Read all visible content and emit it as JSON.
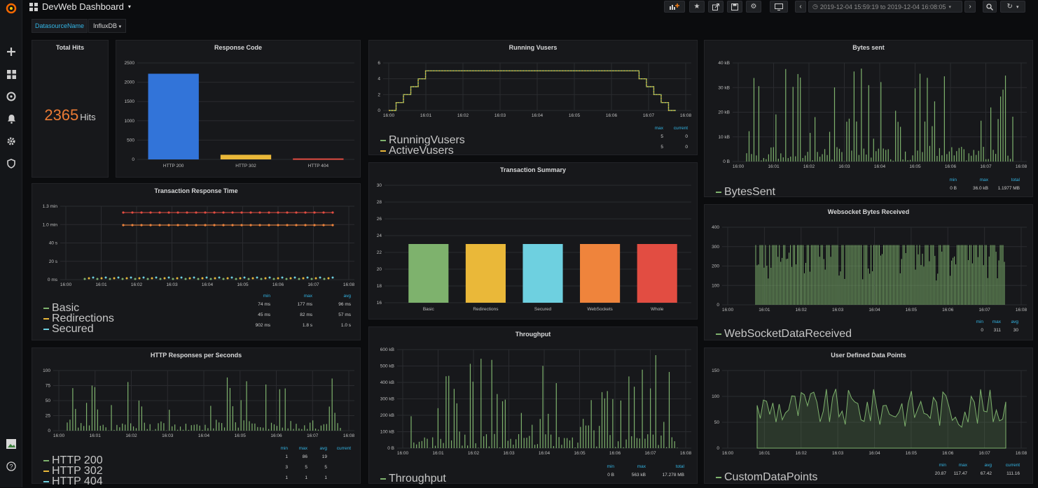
{
  "sidebar": {
    "icons": [
      "grafana-logo-icon",
      "plus-icon",
      "dashboards-icon",
      "explore-icon",
      "alerting-icon",
      "configuration-icon",
      "shield-icon",
      "user-avatar-icon",
      "help-icon"
    ]
  },
  "header": {
    "title": "DevWeb Dashboard",
    "time_range": "2019-12-04 15:59:19 to 2019-12-04 16:08:05",
    "variable": {
      "label": "DatasourceName",
      "value": "InfluxDB"
    }
  },
  "panels": {
    "total_hits": {
      "title": "Total Hits",
      "value": "2365",
      "unit": "Hits"
    },
    "response_code": {
      "title": "Response Code",
      "ylim": [
        0,
        2500
      ],
      "yticks": [
        "2500",
        "2000",
        "1500",
        "1000",
        "500",
        "0"
      ],
      "categories": [
        "HTTP 200",
        "HTTP 302",
        "HTTP 404"
      ],
      "values": [
        2220,
        120,
        25
      ],
      "colors": [
        "#3274d9",
        "#eab839",
        "#e24d42"
      ]
    },
    "running_vusers": {
      "title": "Running Vusers",
      "yticks": [
        "6",
        "4",
        "2",
        "0"
      ],
      "xticks": [
        "16:00",
        "16:01",
        "16:02",
        "16:03",
        "16:04",
        "16:05",
        "16:06",
        "16:07",
        "16:08"
      ],
      "legend_headers": [
        "max",
        "current"
      ],
      "series": [
        {
          "name": "RunningVusers",
          "color": "#7eb26d",
          "max": "5",
          "current": "0"
        },
        {
          "name": "ActiveVusers",
          "color": "#eab839",
          "max": "5",
          "current": "0"
        }
      ]
    },
    "bytes_sent": {
      "title": "Bytes sent",
      "yticks": [
        "40 kB",
        "30 kB",
        "20 kB",
        "10 kB",
        "0 B"
      ],
      "xticks": [
        "16:00",
        "16:01",
        "16:02",
        "16:03",
        "16:04",
        "16:05",
        "16:06",
        "16:07",
        "16:08"
      ],
      "legend_headers": [
        "min",
        "max",
        "total"
      ],
      "series": [
        {
          "name": "BytesSent",
          "color": "#7eb26d",
          "min": "0 B",
          "max": "36.0 kB",
          "total": "1.1977 MB"
        }
      ]
    },
    "transaction_response_time": {
      "title": "Transaction Response Time",
      "yticks": [
        "1.3 min",
        "1.0 min",
        "40 s",
        "20 s",
        "0 ms"
      ],
      "xticks": [
        "16:00",
        "16:01",
        "16:02",
        "16:03",
        "16:04",
        "16:05",
        "16:06",
        "16:07",
        "16:08"
      ],
      "legend_headers": [
        "min",
        "max",
        "avg"
      ],
      "series": [
        {
          "name": "Basic",
          "color": "#7eb26d",
          "min": "74 ms",
          "max": "177 ms",
          "avg": "96 ms"
        },
        {
          "name": "Redirections",
          "color": "#eab839",
          "min": "45 ms",
          "max": "82 ms",
          "avg": "57 ms"
        },
        {
          "name": "Secured",
          "color": "#6ed0e0",
          "min": "902 ms",
          "max": "1.8 s",
          "avg": "1.0 s"
        }
      ]
    },
    "transaction_summary": {
      "title": "Transaction Summary",
      "yticks": [
        "30",
        "28",
        "26",
        "24",
        "22",
        "20",
        "18",
        "16"
      ],
      "categories": [
        "Basic",
        "Redirections",
        "Secured",
        "WebSockets",
        "Whole"
      ],
      "values": [
        23,
        23,
        23,
        23,
        23
      ],
      "colors": [
        "#7eb26d",
        "#eab839",
        "#6ed0e0",
        "#ef843c",
        "#e24d42"
      ]
    },
    "websocket_bytes": {
      "title": "Websocket Bytes Received",
      "yticks": [
        "400",
        "300",
        "200",
        "100",
        "0"
      ],
      "xticks": [
        "16:00",
        "16:01",
        "16:02",
        "16:03",
        "16:04",
        "16:05",
        "16:06",
        "16:07",
        "16:08"
      ],
      "legend_headers": [
        "min",
        "max",
        "avg"
      ],
      "series": [
        {
          "name": "WebSocketDataReceived",
          "color": "#7eb26d",
          "min": "0",
          "max": "311",
          "avg": "30"
        }
      ]
    },
    "http_responses": {
      "title": "HTTP Responses per Seconds",
      "yticks": [
        "100",
        "75",
        "50",
        "25",
        "0"
      ],
      "xticks": [
        "16:00",
        "16:01",
        "16:02",
        "16:03",
        "16:04",
        "16:05",
        "16:06",
        "16:07",
        "16:08"
      ],
      "legend_headers": [
        "min",
        "max",
        "avg",
        "current"
      ],
      "series": [
        {
          "name": "HTTP 200",
          "color": "#7eb26d",
          "min": "1",
          "max": "86",
          "avg": "19",
          "current": ""
        },
        {
          "name": "HTTP 302",
          "color": "#eab839",
          "min": "3",
          "max": "5",
          "avg": "5",
          "current": ""
        },
        {
          "name": "HTTP 404",
          "color": "#6ed0e0",
          "min": "1",
          "max": "1",
          "avg": "1",
          "current": ""
        }
      ]
    },
    "throughput": {
      "title": "Throughput",
      "yticks": [
        "600 kB",
        "500 kB",
        "400 kB",
        "300 kB",
        "200 kB",
        "100 kB",
        "0 B"
      ],
      "xticks": [
        "16:00",
        "16:01",
        "16:02",
        "16:03",
        "16:04",
        "16:05",
        "16:06",
        "16:07",
        "16:08"
      ],
      "legend_headers": [
        "min",
        "max",
        "total"
      ],
      "series": [
        {
          "name": "Throughput",
          "color": "#7eb26d",
          "min": "0 B",
          "max": "563 kB",
          "total": "17.278 MB"
        }
      ]
    },
    "user_defined": {
      "title": "User Defined Data Points",
      "yticks": [
        "150",
        "100",
        "50",
        "0"
      ],
      "xticks": [
        "16:00",
        "16:01",
        "16:02",
        "16:03",
        "16:04",
        "16:05",
        "16:06",
        "16:07",
        "16:08"
      ],
      "legend_headers": [
        "min",
        "max",
        "avg",
        "current"
      ],
      "series": [
        {
          "name": "CustomDataPoints",
          "color": "#7eb26d",
          "min": "20.87",
          "max": "117.47",
          "avg": "67.42",
          "current": "111.16"
        }
      ]
    }
  }
}
